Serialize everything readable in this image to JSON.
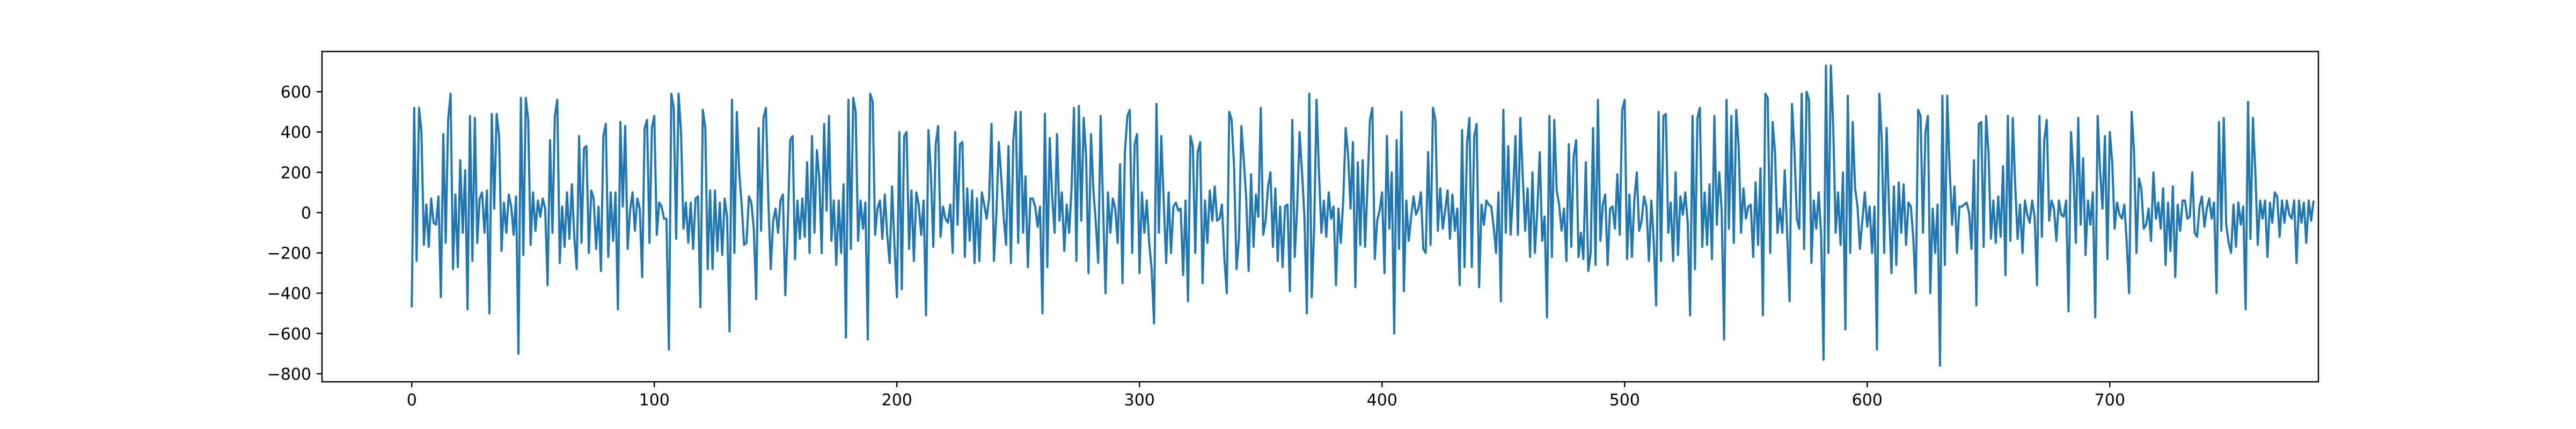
{
  "chart_data": {
    "type": "line",
    "title": "",
    "xlabel": "",
    "ylabel": "",
    "xlim": [
      -37,
      786
    ],
    "ylim": [
      -840,
      800
    ],
    "x_ticks": [
      0,
      100,
      200,
      300,
      400,
      500,
      600,
      700
    ],
    "y_ticks": [
      -800,
      -600,
      -400,
      -200,
      0,
      200,
      400,
      600
    ],
    "x_tick_labels": [
      "0",
      "100",
      "200",
      "300",
      "400",
      "500",
      "600",
      "700"
    ],
    "y_tick_labels": [
      "−800",
      "−600",
      "−400",
      "−200",
      "0",
      "200",
      "400",
      "600"
    ],
    "grid": false,
    "legend": "none",
    "series": [
      {
        "color": "#1f77b4",
        "x_start": 0,
        "x_step": 1,
        "values": [
          -470,
          520,
          -240,
          520,
          400,
          -160,
          40,
          -170,
          70,
          -50,
          -60,
          80,
          -420,
          390,
          -150,
          460,
          590,
          -280,
          90,
          -270,
          260,
          -100,
          210,
          -480,
          480,
          -240,
          470,
          -150,
          70,
          100,
          -100,
          110,
          -500,
          490,
          20,
          490,
          380,
          -190,
          50,
          -100,
          90,
          30,
          -110,
          80,
          -700,
          570,
          -210,
          570,
          460,
          -160,
          100,
          -90,
          60,
          -20,
          70,
          20,
          -360,
          360,
          -100,
          480,
          560,
          -250,
          30,
          -170,
          100,
          -130,
          140,
          -120,
          -280,
          380,
          -150,
          320,
          330,
          -200,
          110,
          70,
          -180,
          30,
          -290,
          380,
          440,
          -220,
          100,
          -140,
          100,
          -480,
          450,
          30,
          430,
          -180,
          10,
          100,
          -90,
          70,
          20,
          -320,
          420,
          460,
          -150,
          420,
          480,
          -110,
          50,
          30,
          -30,
          -30,
          -680,
          590,
          520,
          -130,
          590,
          400,
          -80,
          50,
          -150,
          50,
          -180,
          70,
          80,
          -470,
          510,
          420,
          -280,
          110,
          -280,
          110,
          -190,
          50,
          -210,
          70,
          -20,
          -590,
          560,
          -200,
          500,
          200,
          40,
          -160,
          -150,
          80,
          50,
          -80,
          -430,
          420,
          -90,
          470,
          520,
          60,
          -280,
          -40,
          20,
          -100,
          60,
          90,
          -410,
          -70,
          360,
          380,
          -230,
          60,
          -130,
          70,
          -120,
          250,
          -200,
          380,
          -100,
          310,
          170,
          -200,
          440,
          10,
          480,
          -140,
          60,
          -260,
          60,
          -200,
          140,
          -620,
          560,
          -180,
          570,
          500,
          -140,
          60,
          -80,
          50,
          -630,
          590,
          550,
          -110,
          20,
          60,
          -130,
          90,
          -110,
          -250,
          130,
          -160,
          -420,
          400,
          -380,
          380,
          400,
          -180,
          110,
          -240,
          100,
          40,
          -110,
          60,
          -510,
          410,
          200,
          -170,
          340,
          430,
          -120,
          30,
          -30,
          -50,
          40,
          -200,
          400,
          -60,
          340,
          350,
          -220,
          120,
          -140,
          110,
          -250,
          70,
          -240,
          100,
          40,
          -30,
          70,
          440,
          -240,
          -10,
          350,
          180,
          -20,
          -160,
          330,
          -250,
          360,
          500,
          -150,
          500,
          -100,
          180,
          -270,
          70,
          70,
          30,
          -70,
          30,
          -500,
          490,
          -270,
          370,
          80,
          -100,
          390,
          -40,
          100,
          -190,
          40,
          -100,
          120,
          520,
          -240,
          530,
          -40,
          470,
          280,
          -300,
          390,
          110,
          -50,
          -250,
          480,
          20,
          -400,
          100,
          -100,
          70,
          20,
          -150,
          240,
          -350,
          300,
          480,
          510,
          -200,
          340,
          390,
          -300,
          100,
          -100,
          60,
          -150,
          -280,
          -550,
          540,
          -100,
          380,
          50,
          -250,
          100,
          -200,
          30,
          50,
          10,
          20,
          -310,
          60,
          -440,
          380,
          330,
          -200,
          300,
          350,
          -350,
          60,
          -150,
          110,
          -40,
          130,
          -40,
          -30,
          40,
          -230,
          -400,
          500,
          460,
          230,
          -280,
          -130,
          430,
          260,
          70,
          -290,
          190,
          -170,
          90,
          -20,
          520,
          -110,
          -40,
          130,
          200,
          -170,
          120,
          -240,
          30,
          -270,
          30,
          40,
          -390,
          460,
          -220,
          30,
          400,
          200,
          -20,
          -500,
          590,
          -420,
          -80,
          560,
          200,
          -100,
          60,
          -120,
          100,
          -30,
          30,
          -360,
          20,
          -150,
          60,
          420,
          290,
          20,
          350,
          -370,
          250,
          -160,
          260,
          -170,
          130,
          460,
          520,
          -230,
          -40,
          10,
          100,
          -300,
          380,
          -80,
          200,
          -600,
          360,
          -180,
          500,
          -390,
          60,
          -140,
          -20,
          80,
          -10,
          20,
          100,
          -180,
          -200,
          300,
          -160,
          520,
          460,
          -90,
          120,
          -80,
          10,
          110,
          -130,
          90,
          -90,
          20,
          -360,
          410,
          -270,
          340,
          470,
          -270,
          380,
          440,
          -370,
          40,
          -60,
          60,
          40,
          30,
          -70,
          -200,
          100,
          -440,
          510,
          -100,
          330,
          -110,
          90,
          380,
          -110,
          470,
          180,
          -90,
          120,
          -220,
          200,
          -200,
          10,
          300,
          -140,
          -20,
          -520,
          480,
          -220,
          460,
          110,
          40,
          -90,
          20,
          -240,
          340,
          -170,
          280,
          360,
          -220,
          -100,
          -230,
          250,
          -290,
          -200,
          420,
          -260,
          560,
          -140,
          40,
          90,
          -260,
          20,
          30,
          -80,
          190,
          -110,
          510,
          560,
          -230,
          90,
          -220,
          60,
          200,
          -90,
          -40,
          80,
          30,
          -240,
          60,
          -140,
          -460,
          500,
          -240,
          480,
          490,
          -100,
          50,
          -240,
          200,
          -210,
          80,
          -10,
          100,
          -50,
          -510,
          480,
          -280,
          470,
          520,
          -170,
          100,
          -160,
          140,
          -230,
          480,
          -60,
          200,
          10,
          -630,
          560,
          -80,
          480,
          -150,
          510,
          330,
          -100,
          120,
          -30,
          30,
          40,
          -220,
          150,
          -160,
          220,
          -510,
          590,
          570,
          -200,
          450,
          300,
          -100,
          20,
          -100,
          210,
          -100,
          -440,
          540,
          310,
          -30,
          -80,
          590,
          -180,
          600,
          560,
          -250,
          60,
          -80,
          100,
          -110,
          -730,
          730,
          -200,
          730,
          420,
          -100,
          100,
          -160,
          200,
          -580,
          580,
          -200,
          450,
          120,
          30,
          -180,
          -40,
          100,
          -70,
          30,
          -200,
          30,
          -680,
          590,
          360,
          -200,
          420,
          20,
          -300,
          130,
          -260,
          150,
          -100,
          140,
          -160,
          50,
          30,
          -130,
          -400,
          510,
          480,
          -100,
          400,
          480,
          -400,
          20,
          -200,
          40,
          -760,
          580,
          -260,
          580,
          210,
          -60,
          130,
          -200,
          30,
          30,
          40,
          50,
          0,
          -180,
          260,
          -460,
          440,
          450,
          -170,
          480,
          300,
          -130,
          60,
          -150,
          80,
          -120,
          230,
          -310,
          480,
          -140,
          470,
          140,
          -130,
          40,
          -200,
          60,
          -10,
          -50,
          60,
          -20,
          -360,
          480,
          -120,
          360,
          460,
          -40,
          60,
          20,
          -140,
          60,
          -10,
          -20,
          60,
          -490,
          400,
          200,
          -150,
          470,
          -60,
          270,
          -210,
          60,
          -60,
          100,
          -520,
          480,
          210,
          20,
          380,
          -230,
          400,
          250,
          -80,
          50,
          -10,
          -30,
          40,
          -150,
          -400,
          500,
          300,
          -200,
          170,
          120,
          -80,
          -60,
          20,
          -140,
          200,
          -30,
          50,
          -80,
          120,
          -260,
          50,
          -190,
          130,
          -320,
          40,
          -90,
          60,
          60,
          -30,
          -20,
          200,
          -100,
          -120,
          30,
          80,
          -70,
          20,
          70,
          -30,
          50,
          -400,
          450,
          -90,
          470,
          -60,
          -150,
          -200,
          40,
          -170,
          50,
          -60,
          30,
          -480,
          550,
          -130,
          470,
          200,
          -160,
          60,
          -30,
          60,
          -220,
          50,
          -50,
          100,
          80,
          -120,
          60,
          -50,
          60,
          -10,
          -30,
          60,
          -250,
          60,
          -50,
          50,
          -150,
          60,
          -40,
          60
        ]
      }
    ]
  }
}
